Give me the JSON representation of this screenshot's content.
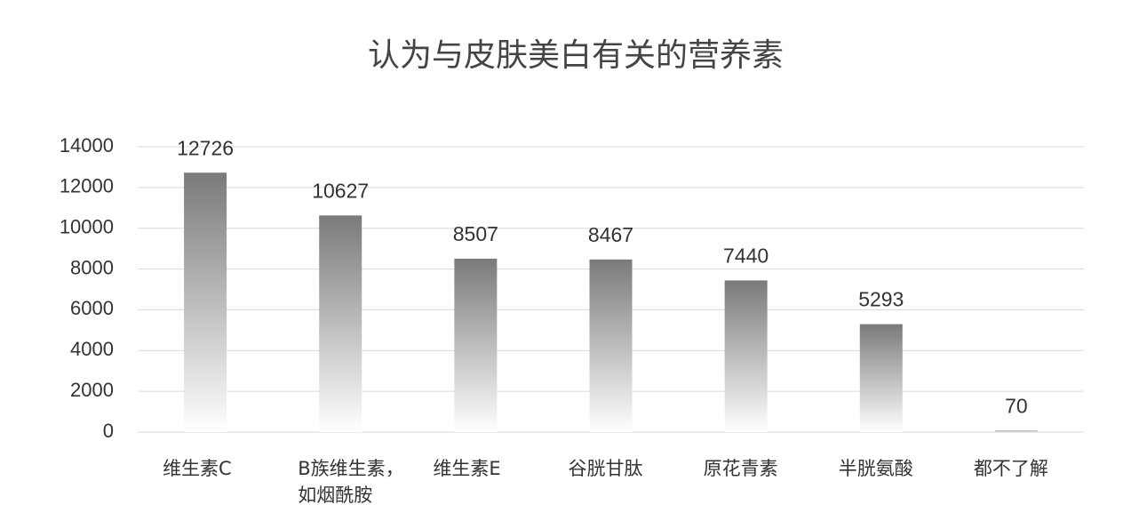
{
  "chart_data": {
    "type": "bar",
    "title": "认为与皮肤美白有关的营养素",
    "categories": [
      "维生素C",
      "B族维生素，\n如烟酰胺",
      "维生素E",
      "谷胱甘肽",
      "原花青素",
      "半胱氨酸",
      "都不了解"
    ],
    "values": [
      12726,
      10627,
      8507,
      8467,
      7440,
      5293,
      70
    ],
    "color": "#7a7a7a",
    "ylim": [
      0,
      14000
    ],
    "yticks": [
      0,
      2000,
      4000,
      6000,
      8000,
      10000,
      12000,
      14000
    ],
    "grid": true
  }
}
